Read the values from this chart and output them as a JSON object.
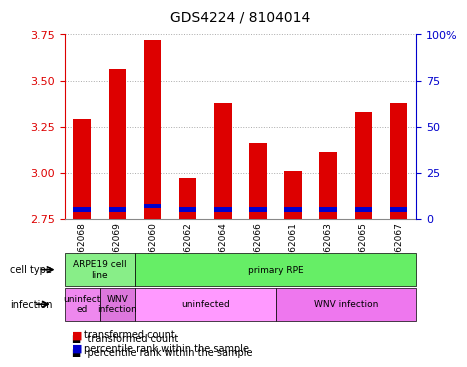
{
  "title": "GDS4224 / 8104014",
  "samples": [
    "GSM762068",
    "GSM762069",
    "GSM762060",
    "GSM762062",
    "GSM762064",
    "GSM762066",
    "GSM762061",
    "GSM762063",
    "GSM762065",
    "GSM762067"
  ],
  "transformed_counts": [
    3.29,
    3.56,
    3.72,
    2.97,
    3.38,
    3.16,
    3.01,
    3.11,
    3.33,
    3.38
  ],
  "percentile_ranks": [
    5,
    5,
    7,
    5,
    5,
    5,
    5,
    5,
    5,
    5
  ],
  "ylim": [
    2.75,
    3.75
  ],
  "yticks": [
    2.75,
    3.0,
    3.25,
    3.5,
    3.75
  ],
  "right_yticks": [
    0,
    25,
    50,
    75,
    100
  ],
  "bar_bottom": 2.75,
  "red_color": "#dd0000",
  "blue_color": "#0000cc",
  "cell_type_colors": {
    "ARPE19 cell line": "#66ff66",
    "primary RPE": "#66ff66"
  },
  "infection_colors": {
    "uninfected_1": "#ee88ee",
    "WNV_infection_1": "#ee88ee",
    "uninfected_2": "#ff99ff",
    "WNV_infection_2": "#ff99ff"
  },
  "cell_type_row": [
    {
      "label": "ARPE19 cell\nline",
      "start": 0,
      "end": 2,
      "color": "#88ee88"
    },
    {
      "label": "primary RPE",
      "start": 2,
      "end": 10,
      "color": "#66ee66"
    }
  ],
  "infection_row": [
    {
      "label": "uninfect\ned",
      "start": 0,
      "end": 1,
      "color": "#ee88ee"
    },
    {
      "label": "WNV\ninfection",
      "start": 1,
      "end": 2,
      "color": "#dd77dd"
    },
    {
      "label": "uninfected",
      "start": 2,
      "end": 6,
      "color": "#ff99ff"
    },
    {
      "label": "WNV infection",
      "start": 6,
      "end": 10,
      "color": "#ee77ee"
    }
  ],
  "legend_items": [
    {
      "label": "transformed count",
      "color": "#dd0000"
    },
    {
      "label": "percentile rank within the sample",
      "color": "#0000cc"
    }
  ],
  "background_color": "#ffffff",
  "grid_color": "#aaaaaa"
}
